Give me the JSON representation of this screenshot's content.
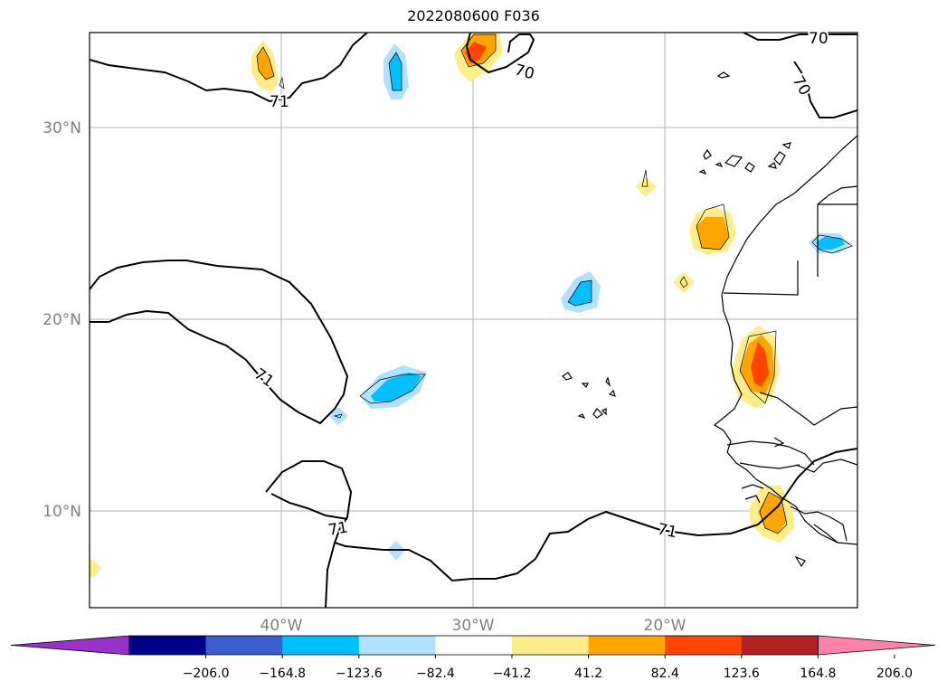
{
  "title": "2022080600 F036",
  "map": {
    "lat_labels": [
      "30°N",
      "20°N",
      "10°N"
    ],
    "lon_labels": [
      "40°W",
      "30°W",
      "20°W"
    ],
    "contour_labels": [
      "70",
      "70",
      "70",
      "71",
      "71",
      "71",
      "71"
    ]
  },
  "colorbar": {
    "tick_labels": [
      "−206.0",
      "−164.8",
      "−123.6",
      "−82.4",
      "−41.2",
      "41.2",
      "82.4",
      "123.6",
      "164.8",
      "206.0"
    ],
    "colors": [
      "#9932cc",
      "#00008b",
      "#3a5fcd",
      "#00bfff",
      "#b0e2ff",
      "#ffffff",
      "#ffec8b",
      "#ffa500",
      "#ff4500",
      "#b22222",
      "#ff82ab"
    ]
  }
}
